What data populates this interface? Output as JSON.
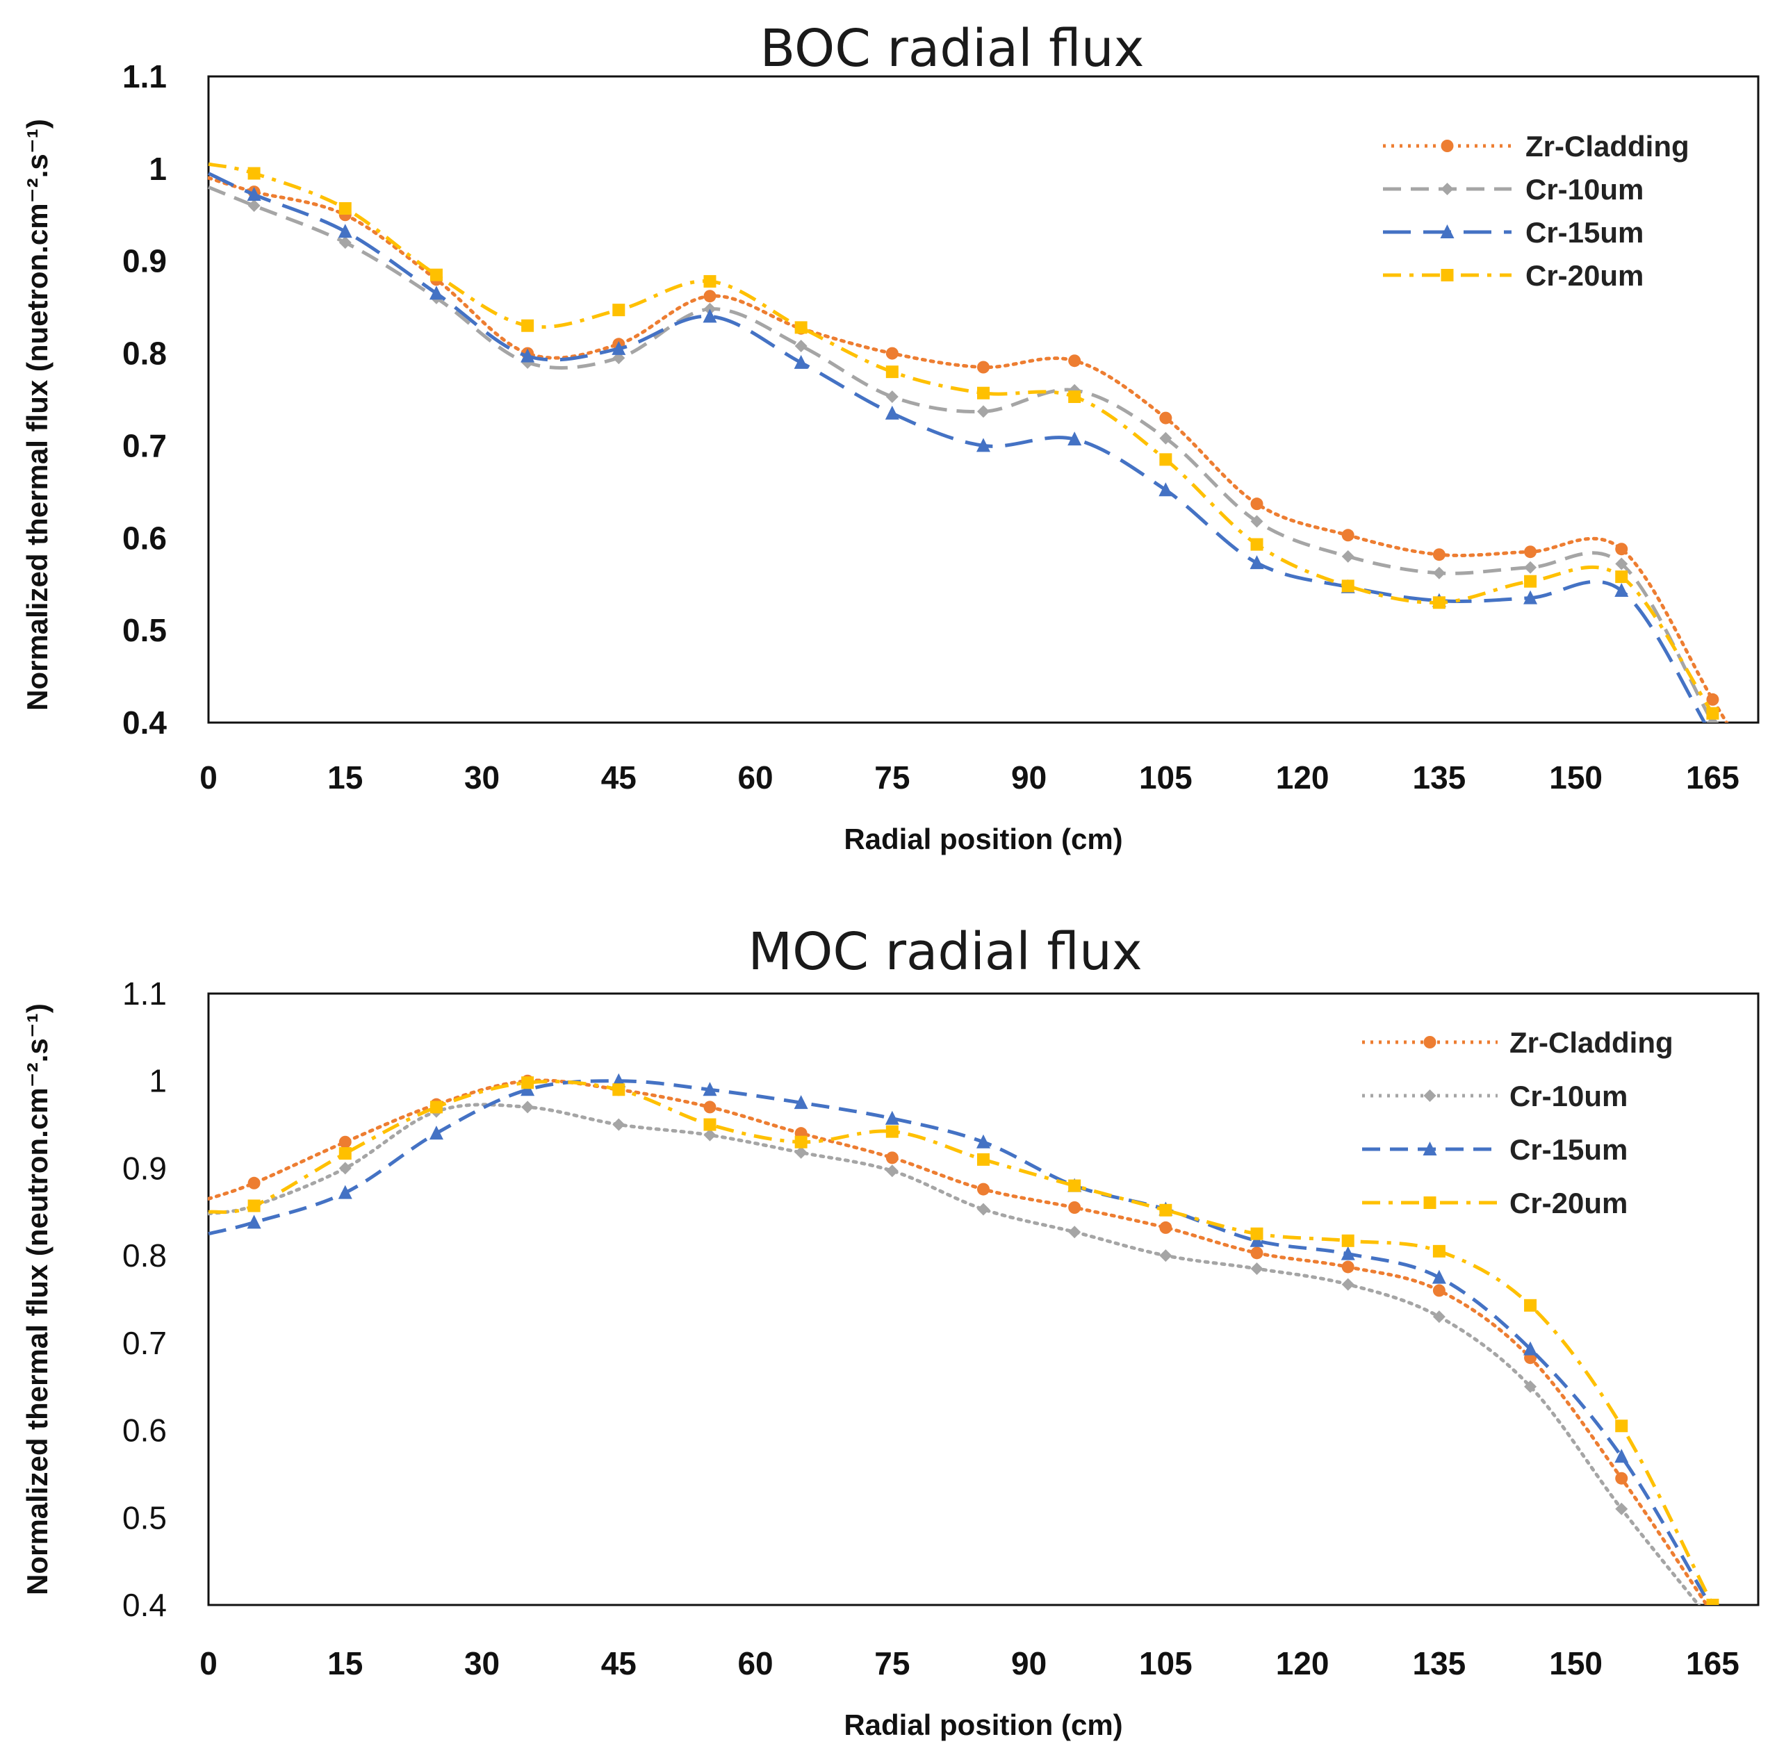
{
  "chart_data": [
    {
      "type": "line",
      "title": "BOC radial flux",
      "xlabel": "Radial position (cm)",
      "ylabel": "Normalized thermal flux (nuetron.cm⁻².s⁻¹)",
      "xlim": [
        0,
        170
      ],
      "ylim": [
        0.4,
        1.1
      ],
      "xticks": [
        "0",
        "15",
        "30",
        "45",
        "60",
        "75",
        "90",
        "105",
        "120",
        "135",
        "150",
        "165"
      ],
      "yticks": [
        "0.4",
        "0.5",
        "0.6",
        "0.7",
        "0.8",
        "0.9",
        "1",
        "1.1"
      ],
      "x": [
        5,
        15,
        25,
        35,
        45,
        55,
        65,
        75,
        85,
        95,
        105,
        115,
        125,
        135,
        145,
        155,
        165
      ],
      "line_start_y": {
        "Zr-Cladding": 0.99,
        "Cr-10um": 0.98,
        "Cr-15um": 0.995,
        "Cr-20um": 1.005
      },
      "legend_position": "top-right",
      "series": [
        {
          "name": "Zr-Cladding",
          "color": "#ED7D31",
          "dash": "dotted",
          "marker": "circle",
          "values": [
            0.975,
            0.95,
            0.88,
            0.8,
            0.81,
            0.862,
            0.827,
            0.8,
            0.785,
            0.792,
            0.73,
            0.637,
            0.603,
            0.582,
            0.585,
            0.588,
            0.425
          ]
        },
        {
          "name": "Cr-10um",
          "color": "#A5A5A5",
          "dash": "dashed",
          "marker": "diamond",
          "values": [
            0.96,
            0.92,
            0.86,
            0.79,
            0.795,
            0.848,
            0.808,
            0.753,
            0.737,
            0.76,
            0.708,
            0.618,
            0.58,
            0.562,
            0.568,
            0.572,
            0.4
          ]
        },
        {
          "name": "Cr-15um",
          "color": "#4472C4",
          "dash": "long-dash",
          "marker": "triangle",
          "values": [
            0.972,
            0.932,
            0.865,
            0.797,
            0.805,
            0.84,
            0.79,
            0.735,
            0.7,
            0.707,
            0.652,
            0.573,
            0.547,
            0.532,
            0.535,
            0.543,
            0.385
          ]
        },
        {
          "name": "Cr-20um",
          "color": "#FFC000",
          "dash": "dash-dot",
          "marker": "square",
          "values": [
            0.995,
            0.957,
            0.885,
            0.83,
            0.847,
            0.878,
            0.828,
            0.78,
            0.757,
            0.753,
            0.685,
            0.593,
            0.548,
            0.53,
            0.553,
            0.558,
            0.41
          ]
        }
      ]
    },
    {
      "type": "line",
      "title": "MOC radial flux",
      "xlabel": "Radial position (cm)",
      "ylabel": "Normalized thermal flux (neutron.cm⁻².s⁻¹)",
      "xlim": [
        0,
        170
      ],
      "ylim": [
        0.4,
        1.1
      ],
      "xticks": [
        "0",
        "15",
        "30",
        "45",
        "60",
        "75",
        "90",
        "105",
        "120",
        "135",
        "150",
        "165"
      ],
      "yticks": [
        "0.4",
        "0.5",
        "0.6",
        "0.7",
        "0.8",
        "0.9",
        "1",
        "1.1"
      ],
      "x": [
        5,
        15,
        25,
        35,
        45,
        55,
        65,
        75,
        85,
        95,
        105,
        115,
        125,
        135,
        145,
        155,
        165
      ],
      "line_start_y": {
        "Zr-Cladding": 0.865,
        "Cr-10um": 0.848,
        "Cr-15um": 0.825,
        "Cr-20um": 0.85
      },
      "legend_position": "top-right",
      "series": [
        {
          "name": "Zr-Cladding",
          "color": "#ED7D31",
          "dash": "dotted",
          "marker": "circle",
          "values": [
            0.883,
            0.93,
            0.973,
            1.0,
            0.99,
            0.97,
            0.94,
            0.912,
            0.876,
            0.855,
            0.832,
            0.803,
            0.787,
            0.76,
            0.683,
            0.545,
            0.39
          ]
        },
        {
          "name": "Cr-10um",
          "color": "#A5A5A5",
          "dash": "dotted",
          "marker": "diamond",
          "values": [
            0.857,
            0.9,
            0.965,
            0.97,
            0.95,
            0.938,
            0.918,
            0.897,
            0.853,
            0.827,
            0.8,
            0.785,
            0.767,
            0.73,
            0.65,
            0.51,
            0.38
          ]
        },
        {
          "name": "Cr-15um",
          "color": "#4472C4",
          "dash": "dashed",
          "marker": "triangle",
          "values": [
            0.838,
            0.872,
            0.94,
            0.99,
            1.0,
            0.99,
            0.975,
            0.957,
            0.93,
            0.88,
            0.853,
            0.817,
            0.802,
            0.775,
            0.693,
            0.57,
            0.395
          ]
        },
        {
          "name": "Cr-20um",
          "color": "#FFC000",
          "dash": "dash-dot",
          "marker": "square",
          "values": [
            0.857,
            0.917,
            0.97,
            0.998,
            0.99,
            0.95,
            0.93,
            0.942,
            0.91,
            0.88,
            0.852,
            0.825,
            0.817,
            0.805,
            0.743,
            0.605,
            0.4
          ]
        }
      ]
    }
  ]
}
